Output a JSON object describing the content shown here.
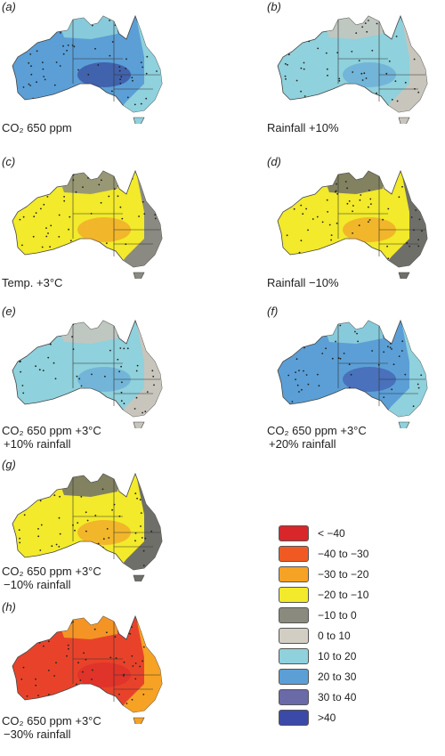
{
  "panels": [
    {
      "letter": "(a)",
      "caption_line1": "CO₂ 650 ppm",
      "caption_line2": "",
      "base_color": "#5b9fd6",
      "secondary_color": "#8fd1dc",
      "dots_color": "#2b2f8c"
    },
    {
      "letter": "(b)",
      "caption_line1": "Rainfall +10%",
      "caption_line2": "",
      "base_color": "#8fd1dc",
      "secondary_color": "#c8c5bc",
      "dots_color": "#5b9fd6"
    },
    {
      "letter": "(c)",
      "caption_line1": "Temp. +3°C",
      "caption_line2": "",
      "base_color": "#f2ea2a",
      "secondary_color": "#8a8a82",
      "dots_color": "#f28a2a"
    },
    {
      "letter": "(d)",
      "caption_line1": "Rainfall −10%",
      "caption_line2": "",
      "base_color": "#f2ea2a",
      "secondary_color": "#6f6f6a",
      "dots_color": "#f28a2a"
    },
    {
      "letter": "(e)",
      "caption_line1": "CO₂ 650 ppm +3°C",
      "caption_line2": "+10% rainfall",
      "base_color": "#8fd1dc",
      "secondary_color": "#c8c5bc",
      "dots_color": "#5b9fd6"
    },
    {
      "letter": "(f)",
      "caption_line1": "CO₂ 650 ppm +3°C",
      "caption_line2": "+20% rainfall",
      "base_color": "#5b9fd6",
      "secondary_color": "#8fd1dc",
      "dots_color": "#3b4aa8"
    },
    {
      "letter": "(g)",
      "caption_line1": "CO₂ 650 ppm +3°C",
      "caption_line2": "−10% rainfall",
      "base_color": "#f2ea2a",
      "secondary_color": "#6f6f6a",
      "dots_color": "#f28a2a"
    },
    {
      "letter": "(h)",
      "caption_line1": "CO₂ 650 ppm +3°C",
      "caption_line2": "−30% rainfall",
      "base_color": "#e8432a",
      "secondary_color": "#f6a225",
      "dots_color": "#d8262a"
    }
  ],
  "legend": [
    {
      "label": "< −40",
      "color": "#d8262a"
    },
    {
      "label": "−40 to −30",
      "color": "#f05a22"
    },
    {
      "label": "−30 to −20",
      "color": "#f6a225"
    },
    {
      "label": "−20 to −10",
      "color": "#f2ea2a"
    },
    {
      "label": "−10 to 0",
      "color": "#8a8a7e"
    },
    {
      "label": "0 to 10",
      "color": "#d2cec4"
    },
    {
      "label": "10 to 20",
      "color": "#8fd1dc"
    },
    {
      "label": "20 to 30",
      "color": "#5b9fd6"
    },
    {
      "label": "30 to 40",
      "color": "#6a6aa8"
    },
    {
      "label": ">40",
      "color": "#3b4aa8"
    }
  ]
}
